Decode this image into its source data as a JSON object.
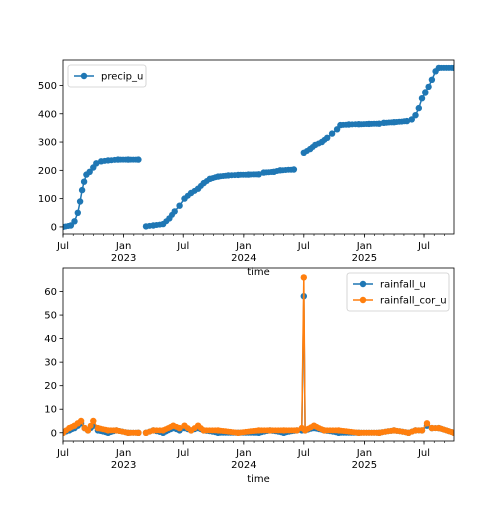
{
  "colors": {
    "series_blue": "#1f77b4",
    "series_orange": "#ff7f0e",
    "axes": "#000000",
    "legend_border": "#cccccc",
    "background": "#ffffff"
  },
  "chart_data": [
    {
      "type": "line",
      "marker": "circle",
      "xaxis": "time",
      "xlabel": "time",
      "xlim": [
        "2022-07-01",
        "2025-09-30"
      ],
      "ylim": [
        -25,
        590
      ],
      "yticks": [
        0,
        100,
        200,
        300,
        400,
        500
      ],
      "xticks": [
        {
          "date": "2022-07-01",
          "label": "Jul",
          "year": ""
        },
        {
          "date": "2023-01-01",
          "label": "Jan",
          "year": "2023"
        },
        {
          "date": "2023-07-01",
          "label": "Jul",
          "year": ""
        },
        {
          "date": "2024-01-01",
          "label": "Jan",
          "year": "2024"
        },
        {
          "date": "2024-07-01",
          "label": "Jul",
          "year": ""
        },
        {
          "date": "2025-01-01",
          "label": "Jan",
          "year": "2025"
        },
        {
          "date": "2025-07-01",
          "label": "Jul",
          "year": ""
        }
      ],
      "grid": false,
      "legend_position": "upper left",
      "series": [
        {
          "name": "precip_u",
          "color": "#1f77b4",
          "segments": [
            [
              [
                "2022-07-01",
                0
              ],
              [
                "2022-07-25",
                5
              ],
              [
                "2022-08-05",
                20
              ],
              [
                "2022-08-15",
                50
              ],
              [
                "2022-08-22",
                90
              ],
              [
                "2022-08-28",
                130
              ],
              [
                "2022-09-03",
                160
              ],
              [
                "2022-09-10",
                185
              ],
              [
                "2022-09-20",
                195
              ],
              [
                "2022-10-01",
                210
              ],
              [
                "2022-10-10",
                225
              ],
              [
                "2022-10-25",
                232
              ],
              [
                "2022-11-15",
                235
              ],
              [
                "2022-12-15",
                238
              ],
              [
                "2023-01-15",
                238
              ],
              [
                "2023-02-15",
                238
              ]
            ],
            [
              [
                "2023-03-10",
                2
              ],
              [
                "2023-04-01",
                5
              ],
              [
                "2023-05-01",
                10
              ],
              [
                "2023-05-20",
                30
              ],
              [
                "2023-06-05",
                55
              ],
              [
                "2023-06-20",
                75
              ],
              [
                "2023-07-05",
                100
              ],
              [
                "2023-07-25",
                120
              ],
              [
                "2023-08-15",
                135
              ],
              [
                "2023-09-01",
                155
              ],
              [
                "2023-09-20",
                170
              ],
              [
                "2023-10-15",
                178
              ],
              [
                "2023-11-15",
                182
              ],
              [
                "2023-12-15",
                184
              ],
              [
                "2024-01-15",
                185
              ],
              [
                "2024-02-15",
                186
              ],
              [
                "2024-03-01",
                192
              ],
              [
                "2024-04-01",
                195
              ],
              [
                "2024-04-20",
                200
              ],
              [
                "2024-06-01",
                203
              ]
            ],
            [
              [
                "2024-07-01",
                262
              ],
              [
                "2024-07-20",
                275
              ],
              [
                "2024-08-05",
                290
              ],
              [
                "2024-08-25",
                300
              ],
              [
                "2024-09-10",
                315
              ],
              [
                "2024-09-25",
                330
              ],
              [
                "2024-10-10",
                345
              ],
              [
                "2024-10-20",
                360
              ],
              [
                "2024-11-15",
                362
              ],
              [
                "2024-12-15",
                363
              ],
              [
                "2025-01-15",
                364
              ],
              [
                "2025-02-15",
                365
              ],
              [
                "2025-03-01",
                368
              ],
              [
                "2025-04-01",
                370
              ],
              [
                "2025-05-10",
                374
              ],
              [
                "2025-05-25",
                380
              ],
              [
                "2025-06-05",
                395
              ],
              [
                "2025-06-15",
                420
              ],
              [
                "2025-06-25",
                455
              ],
              [
                "2025-07-05",
                475
              ],
              [
                "2025-07-15",
                495
              ],
              [
                "2025-07-25",
                520
              ],
              [
                "2025-08-05",
                550
              ],
              [
                "2025-08-15",
                562
              ],
              [
                "2025-09-30",
                562
              ]
            ]
          ]
        }
      ]
    },
    {
      "type": "line",
      "marker": "circle",
      "xaxis": "time",
      "xlabel": "time",
      "xlim": [
        "2022-07-01",
        "2025-09-30"
      ],
      "ylim": [
        -3.5,
        70
      ],
      "yticks": [
        0,
        10,
        20,
        30,
        40,
        50,
        60
      ],
      "xticks": [
        {
          "date": "2022-07-01",
          "label": "Jul",
          "year": ""
        },
        {
          "date": "2023-01-01",
          "label": "Jan",
          "year": "2023"
        },
        {
          "date": "2023-07-01",
          "label": "Jul",
          "year": ""
        },
        {
          "date": "2024-01-01",
          "label": "Jan",
          "year": "2024"
        },
        {
          "date": "2024-07-01",
          "label": "Jul",
          "year": ""
        },
        {
          "date": "2025-01-01",
          "label": "Jan",
          "year": "2025"
        },
        {
          "date": "2025-07-01",
          "label": "Jul",
          "year": ""
        }
      ],
      "grid": false,
      "legend_position": "upper right",
      "series": [
        {
          "name": "rainfall_u",
          "color": "#1f77b4",
          "segments": [
            [
              [
                "2022-07-01",
                0
              ],
              [
                "2022-07-20",
                1
              ],
              [
                "2022-08-05",
                2
              ],
              [
                "2022-08-15",
                3
              ],
              [
                "2022-08-25",
                4
              ],
              [
                "2022-09-05",
                2
              ],
              [
                "2022-09-15",
                1
              ],
              [
                "2022-10-01",
                3
              ],
              [
                "2022-10-15",
                1
              ],
              [
                "2022-11-15",
                0
              ],
              [
                "2022-12-10",
                1
              ],
              [
                "2023-01-15",
                0
              ],
              [
                "2023-02-15",
                0
              ]
            ],
            [
              [
                "2023-03-10",
                0
              ],
              [
                "2023-04-01",
                1
              ],
              [
                "2023-05-01",
                0
              ],
              [
                "2023-06-01",
                2
              ],
              [
                "2023-06-20",
                1
              ],
              [
                "2023-07-05",
                2
              ],
              [
                "2023-07-25",
                1
              ],
              [
                "2023-08-15",
                2
              ],
              [
                "2023-09-01",
                1
              ],
              [
                "2023-10-15",
                0
              ],
              [
                "2023-12-15",
                0
              ],
              [
                "2024-02-15",
                0
              ],
              [
                "2024-03-20",
                1
              ],
              [
                "2024-05-01",
                0
              ],
              [
                "2024-06-10",
                1
              ],
              [
                "2024-06-25",
                1
              ],
              [
                "2024-07-01",
                58
              ],
              [
                "2024-07-05",
                1
              ],
              [
                "2024-08-01",
                2
              ],
              [
                "2024-09-01",
                1
              ],
              [
                "2024-10-15",
                0
              ],
              [
                "2024-12-15",
                0
              ],
              [
                "2025-02-15",
                0
              ],
              [
                "2025-04-01",
                1
              ],
              [
                "2025-05-15",
                0
              ],
              [
                "2025-06-05",
                1
              ],
              [
                "2025-06-25",
                1
              ],
              [
                "2025-07-10",
                3
              ],
              [
                "2025-07-25",
                2
              ],
              [
                "2025-08-15",
                2
              ],
              [
                "2025-09-30",
                0
              ]
            ]
          ]
        },
        {
          "name": "rainfall_cor_u",
          "color": "#ff7f0e",
          "segments": [
            [
              [
                "2022-07-01",
                0
              ],
              [
                "2022-07-20",
                2
              ],
              [
                "2022-08-05",
                3
              ],
              [
                "2022-08-15",
                4
              ],
              [
                "2022-08-25",
                5
              ],
              [
                "2022-09-05",
                2
              ],
              [
                "2022-09-15",
                1
              ],
              [
                "2022-10-01",
                5
              ],
              [
                "2022-10-15",
                2
              ],
              [
                "2022-11-15",
                1
              ],
              [
                "2022-12-10",
                1
              ],
              [
                "2023-01-15",
                0
              ],
              [
                "2023-02-15",
                0
              ]
            ],
            [
              [
                "2023-03-10",
                0
              ],
              [
                "2023-04-01",
                1
              ],
              [
                "2023-05-01",
                1
              ],
              [
                "2023-06-01",
                3
              ],
              [
                "2023-06-20",
                2
              ],
              [
                "2023-07-05",
                3
              ],
              [
                "2023-07-25",
                1
              ],
              [
                "2023-08-15",
                3
              ],
              [
                "2023-09-01",
                1
              ],
              [
                "2023-10-15",
                1
              ],
              [
                "2023-12-15",
                0
              ],
              [
                "2024-02-15",
                1
              ],
              [
                "2024-03-20",
                1
              ],
              [
                "2024-05-01",
                1
              ],
              [
                "2024-06-10",
                1
              ],
              [
                "2024-06-25",
                2
              ],
              [
                "2024-07-01",
                66
              ],
              [
                "2024-07-05",
                1
              ],
              [
                "2024-08-01",
                3
              ],
              [
                "2024-09-01",
                1
              ],
              [
                "2024-10-15",
                1
              ],
              [
                "2024-12-15",
                0
              ],
              [
                "2025-02-15",
                0
              ],
              [
                "2025-04-01",
                1
              ],
              [
                "2025-05-15",
                0
              ],
              [
                "2025-06-05",
                1
              ],
              [
                "2025-06-25",
                1
              ],
              [
                "2025-07-10",
                4
              ],
              [
                "2025-07-25",
                2
              ],
              [
                "2025-08-15",
                2
              ],
              [
                "2025-09-30",
                0
              ]
            ]
          ]
        }
      ]
    }
  ]
}
